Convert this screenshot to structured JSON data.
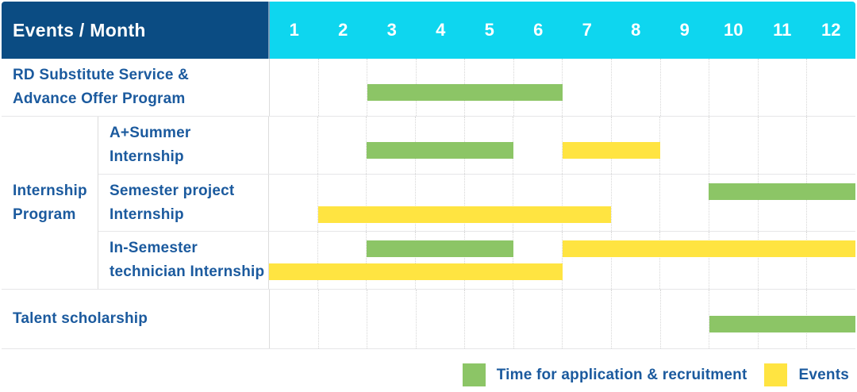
{
  "colors": {
    "header_bg": "#0b4c83",
    "months_bg": "#0ed6ef",
    "label_text": "#1b5a9e",
    "green": "#8cc566",
    "yellow": "#ffe441"
  },
  "table": {
    "header": {
      "title": "Events / Month",
      "months": [
        "1",
        "2",
        "3",
        "4",
        "5",
        "6",
        "7",
        "8",
        "9",
        "10",
        "11",
        "12"
      ]
    },
    "rows": [
      {
        "label": "RD Substitute Service &\nAdvance Offer Program",
        "lines": [
          [
            {
              "t": "application",
              "s": 3,
              "e": 6
            }
          ]
        ]
      },
      {
        "label": "Internship\nProgram",
        "children": [
          {
            "label": "A+Summer\nInternship",
            "lines": [
              [
                {
                  "t": "application",
                  "s": 3,
                  "e": 5
                },
                {
                  "t": "event",
                  "s": 7,
                  "e": 8
                }
              ]
            ]
          },
          {
            "label": "Semester project\nInternship",
            "lines": [
              [
                {
                  "t": "application",
                  "s": 10,
                  "e": 12
                }
              ],
              [
                {
                  "t": "event",
                  "s": 2,
                  "e": 7
                }
              ]
            ]
          },
          {
            "label": "In-Semester\ntechnician Internship",
            "lines": [
              [
                {
                  "t": "application",
                  "s": 3,
                  "e": 5
                },
                {
                  "t": "event",
                  "s": 7,
                  "e": 12
                }
              ],
              [
                {
                  "t": "event",
                  "s": 1,
                  "e": 6
                }
              ]
            ]
          }
        ]
      },
      {
        "label": "Talent scholarship",
        "lines": [
          [
            {
              "t": "application",
              "s": 10,
              "e": 12
            }
          ]
        ]
      }
    ]
  },
  "legend": {
    "items": [
      {
        "type": "application",
        "label": "Time for application & recruitment"
      },
      {
        "type": "event",
        "label": "Events"
      }
    ]
  },
  "chart_data": {
    "type": "bar",
    "subtype": "gantt",
    "title": "Events / Month",
    "x_axis": {
      "label": "Month",
      "ticks": [
        1,
        2,
        3,
        4,
        5,
        6,
        7,
        8,
        9,
        10,
        11,
        12
      ],
      "range": [
        1,
        12
      ],
      "grid": "dotted-vertical"
    },
    "legend_position": "bottom-right",
    "series_legend": [
      {
        "name": "Time for application & recruitment",
        "color": "#8cc566"
      },
      {
        "name": "Events",
        "color": "#ffe441"
      }
    ],
    "rows": [
      {
        "group": null,
        "label": "RD Substitute Service & Advance Offer Program",
        "spans": [
          {
            "series": "Time for application & recruitment",
            "start_month": 3,
            "end_month": 6
          }
        ]
      },
      {
        "group": "Internship Program",
        "label": "A+Summer Internship",
        "spans": [
          {
            "series": "Time for application & recruitment",
            "start_month": 3,
            "end_month": 5
          },
          {
            "series": "Events",
            "start_month": 7,
            "end_month": 8
          }
        ]
      },
      {
        "group": "Internship Program",
        "label": "Semester project Internship",
        "spans": [
          {
            "series": "Time for application & recruitment",
            "start_month": 10,
            "end_month": 12
          },
          {
            "series": "Events",
            "start_month": 2,
            "end_month": 7
          }
        ]
      },
      {
        "group": "Internship Program",
        "label": "In-Semester technician Internship",
        "spans": [
          {
            "series": "Time for application & recruitment",
            "start_month": 3,
            "end_month": 5
          },
          {
            "series": "Events",
            "start_month": 7,
            "end_month": 12
          },
          {
            "series": "Events",
            "start_month": 1,
            "end_month": 6
          }
        ]
      },
      {
        "group": null,
        "label": "Talent scholarship",
        "spans": [
          {
            "series": "Time for application & recruitment",
            "start_month": 10,
            "end_month": 12
          }
        ]
      }
    ]
  }
}
